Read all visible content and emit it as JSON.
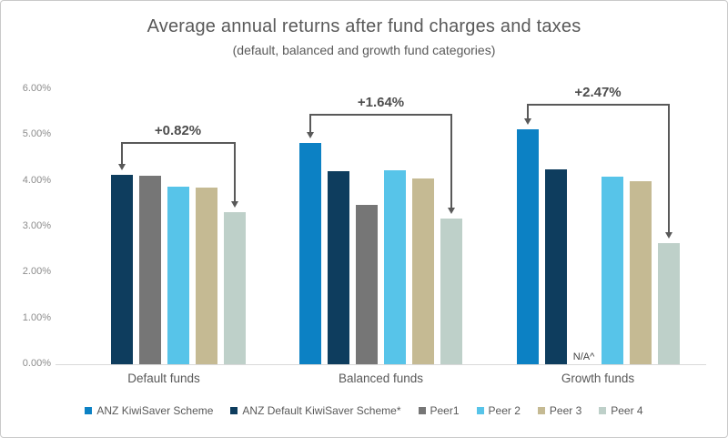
{
  "chart_data": {
    "type": "bar",
    "title": "Average annual returns after fund charges and taxes",
    "subtitle": "(default, balanced and growth fund categories)",
    "categories": [
      "Default funds",
      "Balanced funds",
      "Growth funds"
    ],
    "series": [
      {
        "name": "ANZ KiwiSaver Scheme",
        "color": "#0c81c4",
        "values": [
          null,
          4.82,
          5.12
        ]
      },
      {
        "name": "ANZ Default KiwiSaver Scheme*",
        "color": "#0e3d5e",
        "values": [
          4.13,
          4.22,
          4.26
        ]
      },
      {
        "name": "Peer1",
        "color": "#767676",
        "values": [
          4.12,
          3.48,
          null
        ]
      },
      {
        "name": "Peer 2",
        "color": "#57c4e9",
        "values": [
          3.88,
          4.24,
          4.09
        ]
      },
      {
        "name": "Peer 3",
        "color": "#c5ba93",
        "values": [
          3.85,
          4.06,
          3.99
        ]
      },
      {
        "name": "Peer 4",
        "color": "#bed0c9",
        "values": [
          3.31,
          3.18,
          2.65
        ]
      }
    ],
    "na_labels": [
      {
        "category_index": 2,
        "series_index": 2,
        "label": "N/A^"
      }
    ],
    "annotations": [
      {
        "category_index": 0,
        "label": "+0.82%",
        "from_series": 1,
        "to_series": 5
      },
      {
        "category_index": 1,
        "label": "+1.64%",
        "from_series": 0,
        "to_series": 5
      },
      {
        "category_index": 2,
        "label": "+2.47%",
        "from_series": 0,
        "to_series": 5
      }
    ],
    "y_axis": {
      "ticks": [
        "0.00%",
        "1.00%",
        "2.00%",
        "3.00%",
        "4.00%",
        "5.00%",
        "6.00%"
      ],
      "min": 0,
      "max": 6
    },
    "legend_position": "bottom",
    "grid": false,
    "annotation_color": "#595959"
  }
}
